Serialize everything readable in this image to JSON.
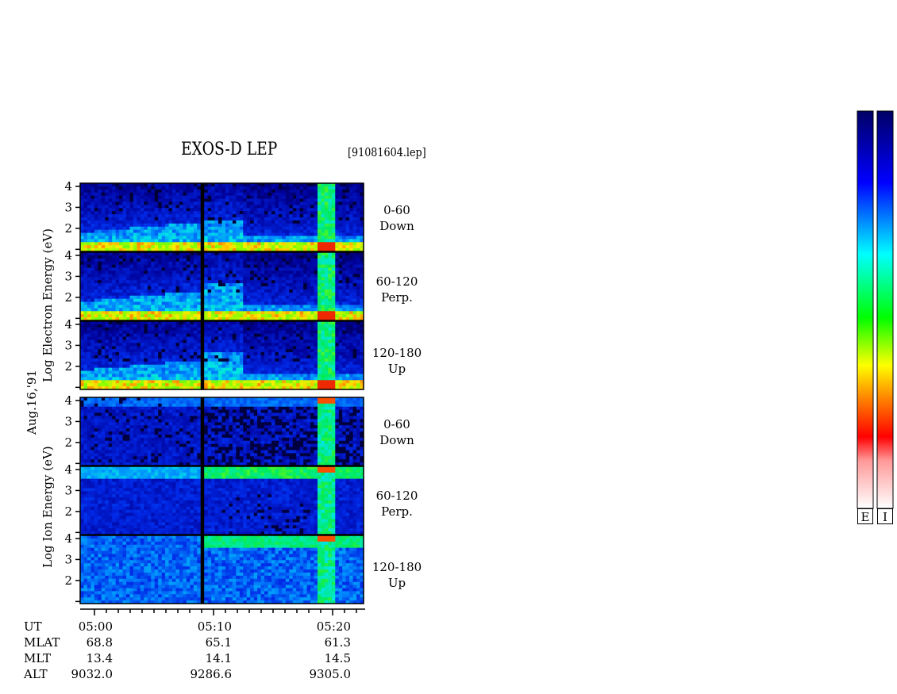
{
  "header": {
    "title": "EXOS-D LEP",
    "file": "[91081604.lep]"
  },
  "date_label": "Aug.16,'91",
  "groups": [
    {
      "label": "Log Electron Energy (eV)"
    },
    {
      "label": "Log Ion Energy (eV)"
    }
  ],
  "channels": [
    {
      "line1": "0-60",
      "line2": "Down"
    },
    {
      "line1": "60-120",
      "line2": "Perp."
    },
    {
      "line1": "120-180",
      "line2": "Up"
    },
    {
      "line1": "0-60",
      "line2": "Down"
    },
    {
      "line1": "60-120",
      "line2": "Perp."
    },
    {
      "line1": "120-180",
      "line2": "Up"
    }
  ],
  "footer": {
    "rows": [
      {
        "label": "UT",
        "values": [
          "05:00",
          "05:10",
          "05:20"
        ]
      },
      {
        "label": "MLAT",
        "values": [
          "68.8",
          "65.1",
          "61.3"
        ]
      },
      {
        "label": "MLT",
        "values": [
          "13.4",
          "14.1",
          "14.5"
        ]
      },
      {
        "label": "ALT",
        "values": [
          "9032.0",
          "9286.6",
          "9305.0"
        ]
      }
    ]
  },
  "colorbar": {
    "labels": [
      "E",
      "I"
    ],
    "colors": [
      "#000066",
      "#0000ff",
      "#00ffff",
      "#00ff00",
      "#ffff00",
      "#ff8800",
      "#ff0000",
      "#ffffff"
    ]
  },
  "chart_data": {
    "type": "heatmap",
    "title": "EXOS-D LEP",
    "x": {
      "label": "UT",
      "ticks": [
        "05:00",
        "05:10",
        "05:20"
      ]
    },
    "y": {
      "ticks": [
        "1",
        "2",
        "3",
        "4"
      ],
      "ylim": [
        1,
        4
      ]
    },
    "panels": [
      {
        "species": "Electron",
        "pitch_angle": "0-60",
        "direction": "Down"
      },
      {
        "species": "Electron",
        "pitch_angle": "60-120",
        "direction": "Perp."
      },
      {
        "species": "Electron",
        "pitch_angle": "120-180",
        "direction": "Up"
      },
      {
        "species": "Ion",
        "pitch_angle": "0-60",
        "direction": "Down"
      },
      {
        "species": "Ion",
        "pitch_angle": "60-120",
        "direction": "Perp."
      },
      {
        "species": "Ion",
        "pitch_angle": "120-180",
        "direction": "Up"
      }
    ]
  }
}
